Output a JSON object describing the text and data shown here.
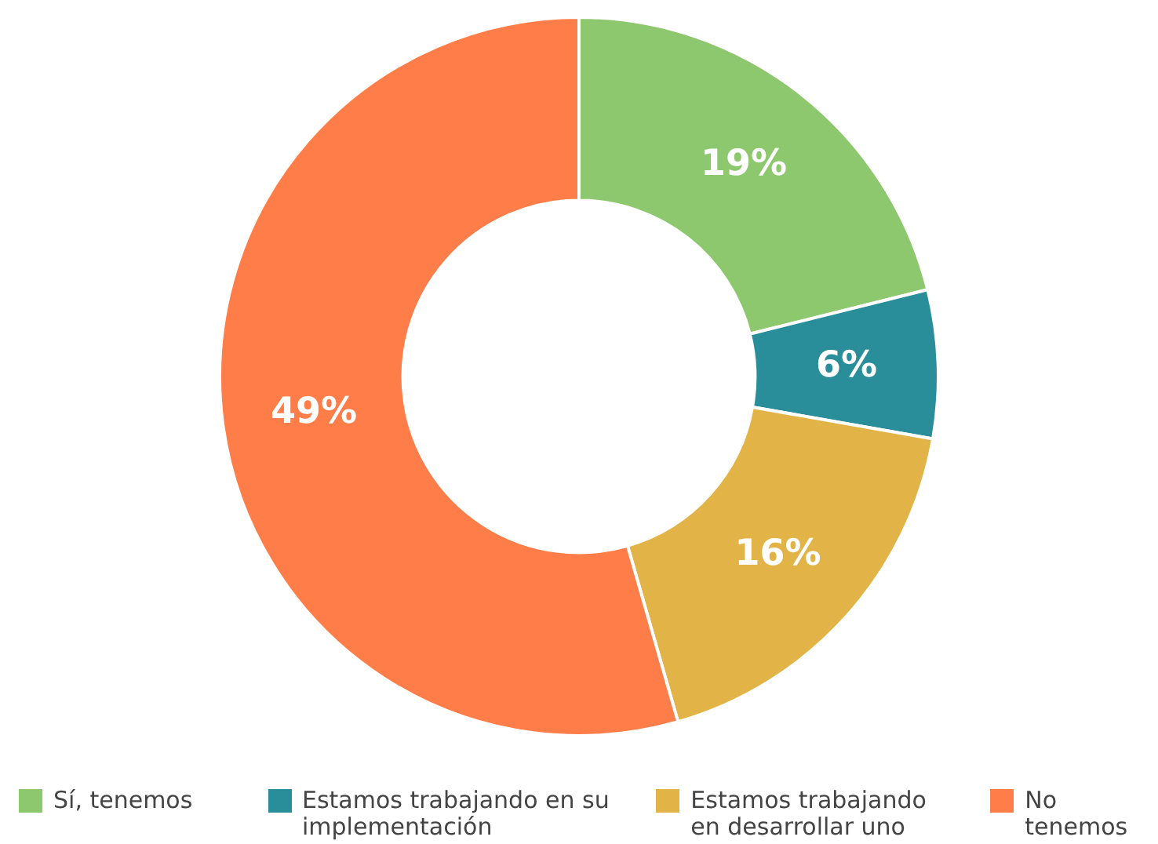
{
  "chart_data": {
    "type": "donut",
    "categories": [
      "Sí, tenemos",
      "Estamos trabajando en su implementación",
      "Estamos trabajando en desarrollar uno",
      "No tenemos"
    ],
    "values": [
      19,
      6,
      16,
      49
    ],
    "value_labels": [
      "19%",
      "6%",
      "16%",
      "49%"
    ],
    "colors": [
      "#8dc86f",
      "#2a8e9a",
      "#e2b447",
      "#ff7d48"
    ],
    "legend": "bottom"
  }
}
